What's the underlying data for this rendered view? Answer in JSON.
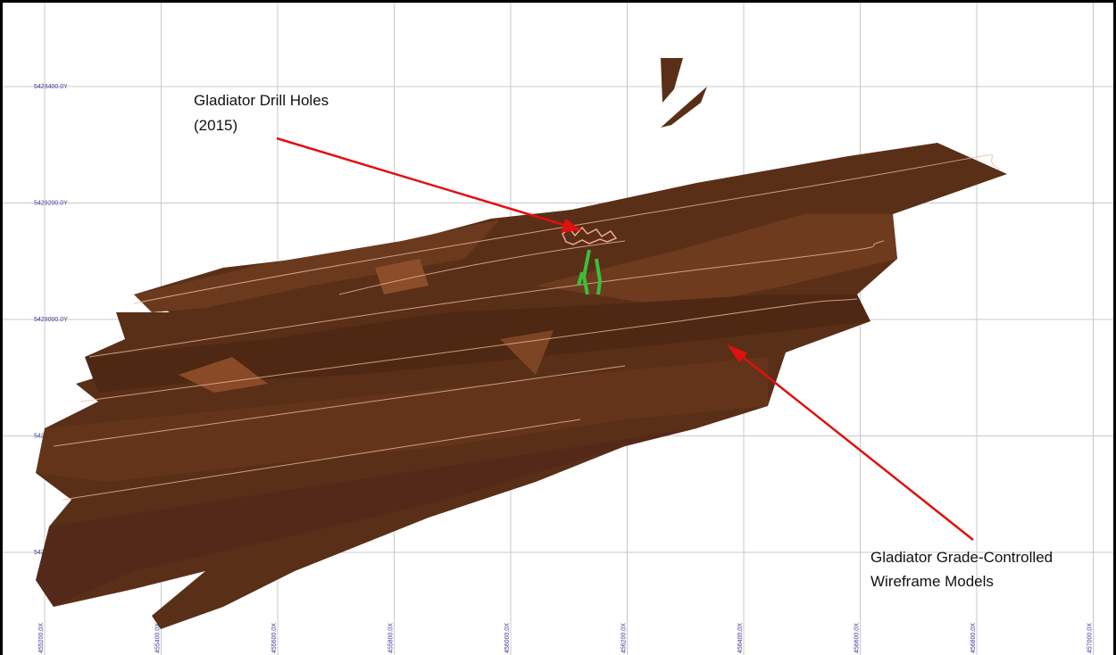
{
  "grid": {
    "y_labels": [
      "5428400.0Y",
      "5428200.0Y",
      "5428000.0Y",
      "5427800.0Y",
      "5427600.0Y"
    ],
    "x_labels": [
      "455200.0X",
      "455400.0X",
      "455600.0X",
      "455800.0X",
      "456000.0X",
      "456200.0X",
      "456400.0X",
      "456600.0X",
      "456800.0X",
      "457000.0X"
    ]
  },
  "annotations": [
    {
      "lines": [
        "Gladiator Drill Holes",
        "(2015)"
      ]
    },
    {
      "lines": [
        "Gladiator Grade-Controlled",
        "Wireframe Models"
      ]
    }
  ]
}
